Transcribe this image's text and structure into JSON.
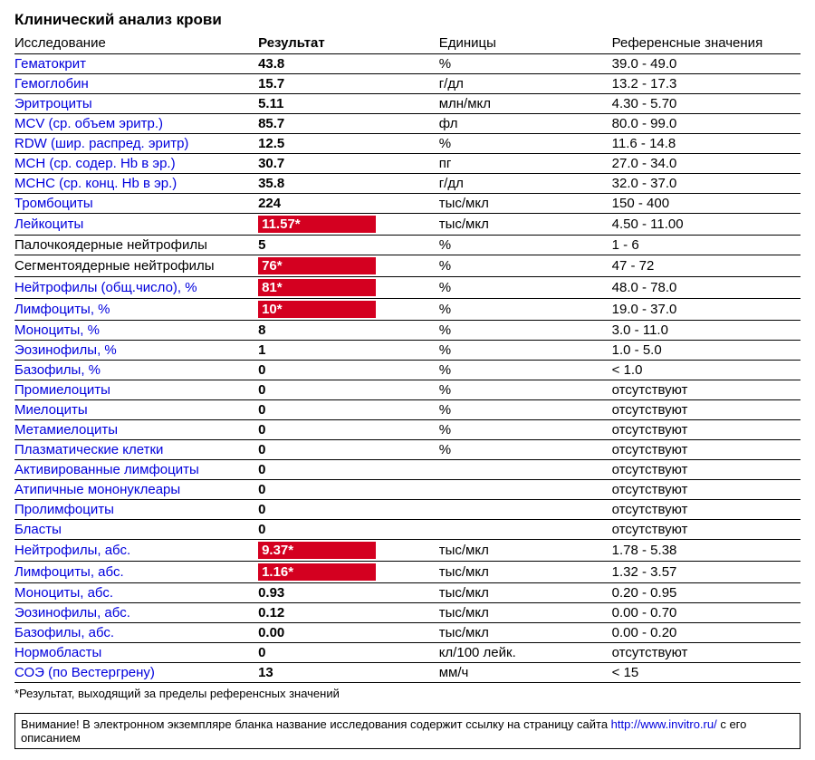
{
  "title": "Клинический анализ крови",
  "columns": {
    "test": "Исследование",
    "result": "Результат",
    "units": "Единицы",
    "ref": "Референсные значения"
  },
  "footnote": "*Результат, выходящий за пределы референсных значений",
  "disclaimer_prefix": "Внимание! В электронном экземпляре бланка название исследования содержит ссылку на страницу сайта ",
  "disclaimer_link": "http://www.invitro.ru/",
  "disclaimer_suffix": " с его описанием",
  "colors": {
    "link": "#0000dd",
    "flag_bg": "#d40020",
    "flag_text": "#ffffff",
    "border": "#000000"
  },
  "rows": [
    {
      "name": "Гематокрит",
      "link": true,
      "result": "43.8",
      "flag": false,
      "units": "%",
      "ref": "39.0 - 49.0"
    },
    {
      "name": "Гемоглобин",
      "link": true,
      "result": "15.7",
      "flag": false,
      "units": "г/дл",
      "ref": "13.2 - 17.3"
    },
    {
      "name": "Эритроциты",
      "link": true,
      "result": "5.11",
      "flag": false,
      "units": "млн/мкл",
      "ref": "4.30 - 5.70"
    },
    {
      "name": "MCV (ср. объем эритр.)",
      "link": true,
      "result": "85.7",
      "flag": false,
      "units": "фл",
      "ref": "80.0 - 99.0"
    },
    {
      "name": "RDW (шир. распред. эритр)",
      "link": true,
      "result": "12.5",
      "flag": false,
      "units": "%",
      "ref": "11.6 - 14.8"
    },
    {
      "name": "MCH (ср. содер. Hb в эр.)",
      "link": true,
      "result": "30.7",
      "flag": false,
      "units": "пг",
      "ref": "27.0 - 34.0"
    },
    {
      "name": "MCHC (ср. конц. Hb в эр.)",
      "link": true,
      "result": "35.8",
      "flag": false,
      "units": "г/дл",
      "ref": "32.0 - 37.0"
    },
    {
      "name": "Тромбоциты",
      "link": true,
      "result": "224",
      "flag": false,
      "units": "тыс/мкл",
      "ref": "150 - 400"
    },
    {
      "name": "Лейкоциты",
      "link": true,
      "result": "11.57*",
      "flag": true,
      "units": "тыс/мкл",
      "ref": "4.50 - 11.00"
    },
    {
      "name": "Палочкоядерные нейтрофилы",
      "link": false,
      "result": "5",
      "flag": false,
      "units": "%",
      "ref": "1 - 6"
    },
    {
      "name": "Сегментоядерные нейтрофилы",
      "link": false,
      "result": "76*",
      "flag": true,
      "units": "%",
      "ref": "47 - 72"
    },
    {
      "name": "Нейтрофилы (общ.число), %",
      "link": true,
      "result": "81*",
      "flag": true,
      "units": "%",
      "ref": "48.0 - 78.0"
    },
    {
      "name": "Лимфоциты, %",
      "link": true,
      "result": "10*",
      "flag": true,
      "units": "%",
      "ref": "19.0 - 37.0"
    },
    {
      "name": "Моноциты, %",
      "link": true,
      "result": "8",
      "flag": false,
      "units": "%",
      "ref": "3.0 - 11.0"
    },
    {
      "name": "Эозинофилы, %",
      "link": true,
      "result": "1",
      "flag": false,
      "units": "%",
      "ref": "1.0 - 5.0"
    },
    {
      "name": "Базофилы, %",
      "link": true,
      "result": "0",
      "flag": false,
      "units": "%",
      "ref": "< 1.0"
    },
    {
      "name": "Промиелоциты",
      "link": true,
      "result": "0",
      "flag": false,
      "units": "%",
      "ref": "отсутствуют"
    },
    {
      "name": "Миелоциты",
      "link": true,
      "result": "0",
      "flag": false,
      "units": "%",
      "ref": "отсутствуют"
    },
    {
      "name": "Метамиелоциты",
      "link": true,
      "result": "0",
      "flag": false,
      "units": "%",
      "ref": "отсутствуют"
    },
    {
      "name": "Плазматические клетки",
      "link": true,
      "result": "0",
      "flag": false,
      "units": "%",
      "ref": "отсутствуют"
    },
    {
      "name": "Активированные лимфоциты",
      "link": true,
      "result": "0",
      "flag": false,
      "units": "",
      "ref": "отсутствуют"
    },
    {
      "name": "Атипичные мононуклеары",
      "link": true,
      "result": "0",
      "flag": false,
      "units": "",
      "ref": "отсутствуют"
    },
    {
      "name": "Пролимфоциты",
      "link": true,
      "result": "0",
      "flag": false,
      "units": "",
      "ref": "отсутствуют"
    },
    {
      "name": "Бласты",
      "link": true,
      "result": "0",
      "flag": false,
      "units": "",
      "ref": "отсутствуют"
    },
    {
      "name": "Нейтрофилы, абс.",
      "link": true,
      "result": "9.37*",
      "flag": true,
      "units": "тыс/мкл",
      "ref": "1.78 - 5.38"
    },
    {
      "name": "Лимфоциты, абс.",
      "link": true,
      "result": "1.16*",
      "flag": true,
      "units": "тыс/мкл",
      "ref": "1.32 - 3.57"
    },
    {
      "name": "Моноциты, абс.",
      "link": true,
      "result": "0.93",
      "flag": false,
      "units": "тыс/мкл",
      "ref": "0.20 - 0.95"
    },
    {
      "name": "Эозинофилы, абс.",
      "link": true,
      "result": "0.12",
      "flag": false,
      "units": "тыс/мкл",
      "ref": "0.00 - 0.70"
    },
    {
      "name": "Базофилы, абс.",
      "link": true,
      "result": "0.00",
      "flag": false,
      "units": "тыс/мкл",
      "ref": "0.00 - 0.20"
    },
    {
      "name": "Нормобласты",
      "link": true,
      "result": "0",
      "flag": false,
      "units": "кл/100 лейк.",
      "ref": "отсутствуют"
    },
    {
      "name": "СОЭ (по Вестергрену)",
      "link": true,
      "result": "13",
      "flag": false,
      "units": "мм/ч",
      "ref": "< 15"
    }
  ]
}
